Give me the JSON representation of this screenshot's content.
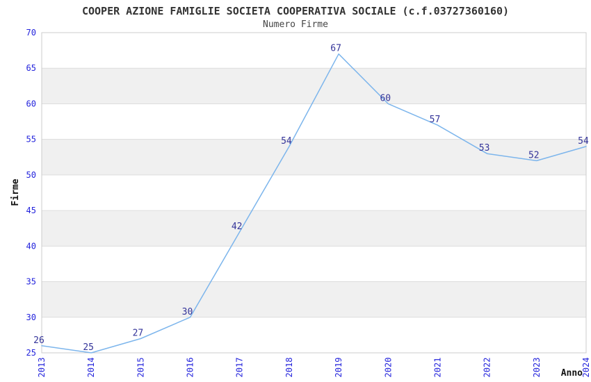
{
  "chart_data": {
    "type": "line",
    "title": "COOPER AZIONE FAMIGLIE SOCIETA COOPERATIVA SOCIALE (c.f.03727360160)",
    "subtitle": "Numero Firme",
    "xlabel": "Anno",
    "ylabel": "Firme",
    "categories": [
      "2013",
      "2014",
      "2015",
      "2016",
      "2017",
      "2018",
      "2019",
      "2020",
      "2021",
      "2022",
      "2023",
      "2024"
    ],
    "series": [
      {
        "name": "Numero Firme",
        "values": [
          26,
          25,
          27,
          30,
          42,
          54,
          67,
          60,
          57,
          53,
          52,
          54
        ]
      }
    ],
    "ylim": [
      25,
      70
    ],
    "ytick_step": 5,
    "yticks": [
      25,
      30,
      35,
      40,
      45,
      50,
      55,
      60,
      65,
      70
    ],
    "grid": "horizontal-bands-alternating",
    "legend": "none",
    "data_labels_visible": true,
    "x_tick_rotation": -90,
    "colors": {
      "line": "#7cb5ec",
      "tick_label": "#2323dc",
      "data_label": "#333399",
      "band_alt": "#f0f0f0",
      "band_main": "#ffffff",
      "grid_line": "#dcdcdc",
      "plot_border": "#cccccc",
      "title": "#333333",
      "axis_title": "#111111",
      "background": "#ffffff"
    }
  }
}
